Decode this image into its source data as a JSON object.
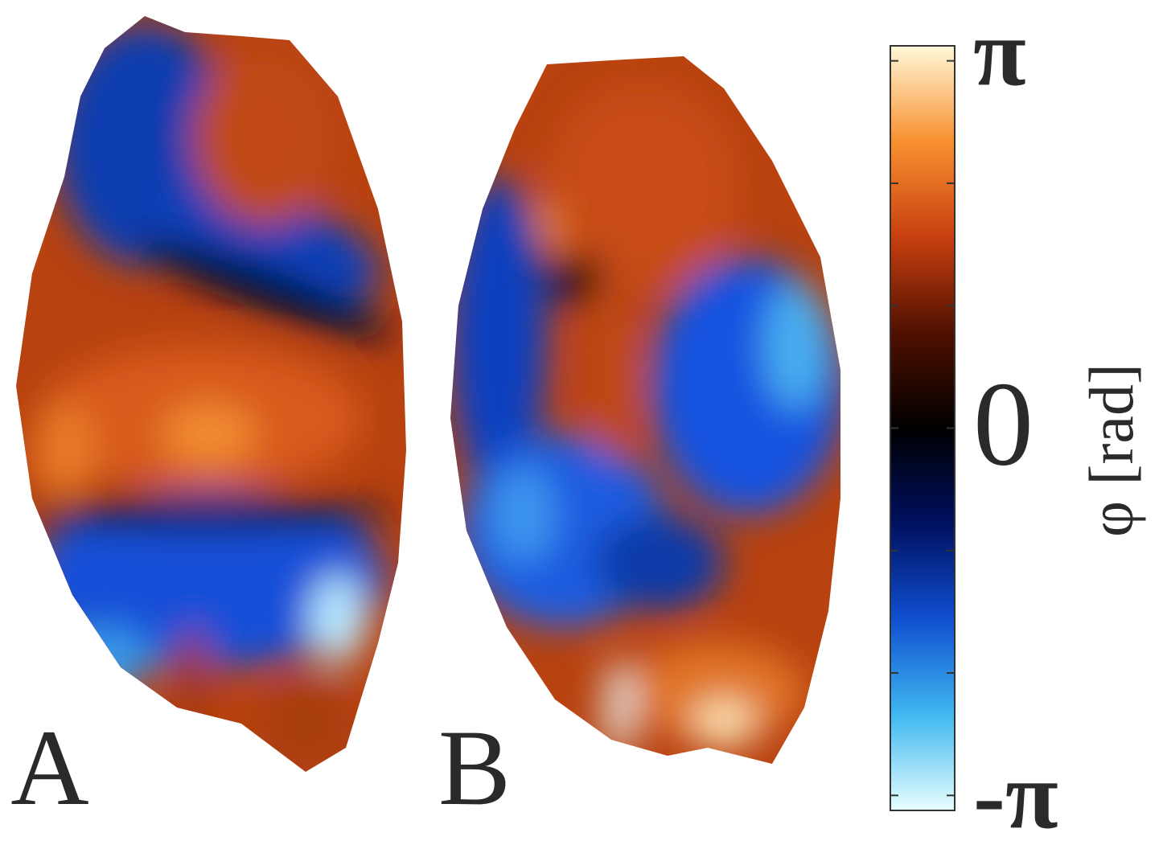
{
  "chart_data": {
    "type": "heatmap",
    "panels": [
      "A",
      "B"
    ],
    "colorbar": {
      "label": "φ [rad]",
      "ylim": [
        -3.27,
        3.27
      ],
      "yticks": [
        {
          "value": 3.14159,
          "label": "π"
        },
        {
          "value": 0,
          "label": "0"
        },
        {
          "value": -3.14159,
          "label": "-π"
        }
      ],
      "minor_yticks": [
        2.0944,
        1.0472,
        -1.0472,
        -2.0944
      ],
      "colormap": [
        "#e8ffff",
        "#40b8f0",
        "#1050d0",
        "#001060",
        "#000000",
        "#501000",
        "#c84010",
        "#f89030",
        "#fff8d8"
      ]
    }
  }
}
